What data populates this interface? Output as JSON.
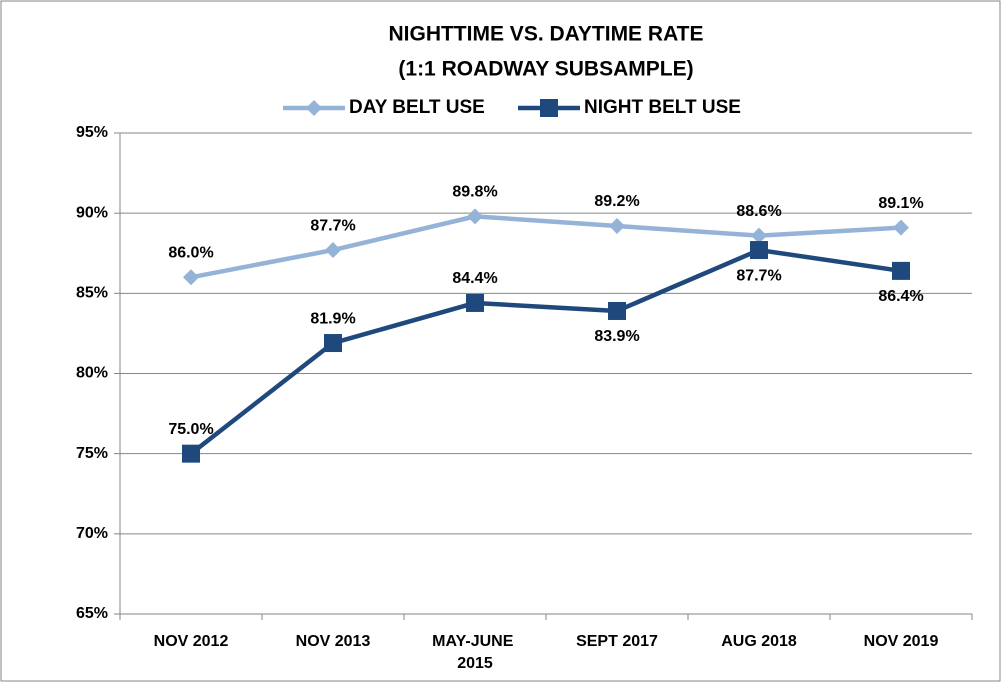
{
  "chart_data": {
    "type": "line",
    "title": "NIGHTTIME  VS. DAYTIME RATE",
    "subtitle": "(1:1 ROADWAY SUBSAMPLE)",
    "categories": [
      "NOV 2012",
      "NOV 2013",
      "MAY-JUNE 2015",
      "SEPT 2017",
      "AUG 2018",
      "NOV 2019"
    ],
    "series": [
      {
        "name": "DAY BELT USE",
        "color": "#95b3d7",
        "marker": "diamond",
        "values": [
          86.0,
          87.7,
          89.8,
          89.2,
          88.6,
          89.1
        ],
        "value_labels": [
          "86.0%",
          "87.7%",
          "89.8%",
          "89.2%",
          "88.6%",
          "89.1%"
        ]
      },
      {
        "name": "NIGHT BELT USE",
        "color": "#1f497d",
        "marker": "square",
        "values": [
          75.0,
          81.9,
          84.4,
          83.9,
          87.7,
          86.4
        ],
        "value_labels": [
          "75.0%",
          "81.9%",
          "84.4%",
          "83.9%",
          "87.7%",
          "86.4%"
        ]
      }
    ],
    "ylim": [
      65,
      95
    ],
    "yticks": [
      {
        "value": 65,
        "label": "65%"
      },
      {
        "value": 70,
        "label": "70%"
      },
      {
        "value": 75,
        "label": "75%"
      },
      {
        "value": 80,
        "label": "80%"
      },
      {
        "value": 85,
        "label": "85%"
      },
      {
        "value": 90,
        "label": "90%"
      },
      {
        "value": 95,
        "label": "95%"
      }
    ],
    "grid": true,
    "legend": "top"
  }
}
